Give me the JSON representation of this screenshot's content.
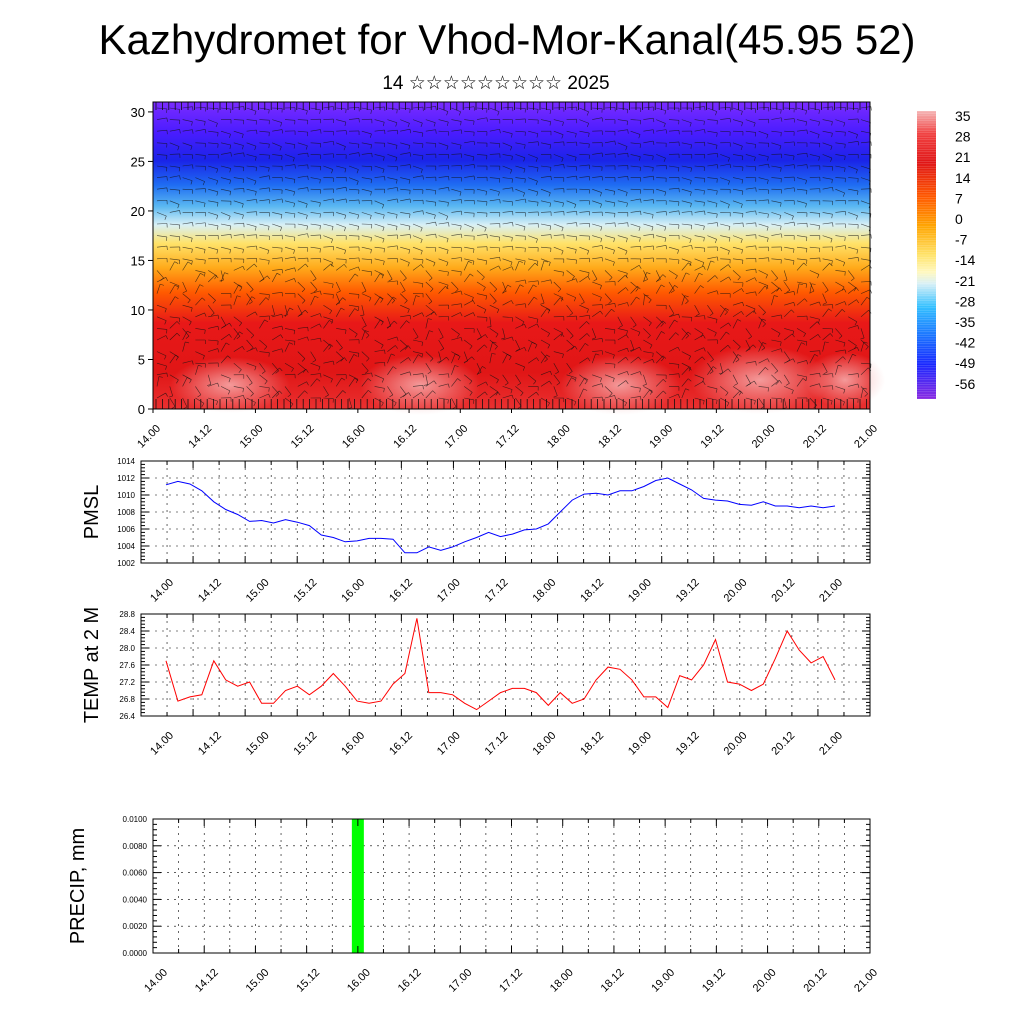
{
  "header": {
    "title": "Kazhydromet for Vhod-Mor-Kanal(45.95 52)",
    "subtitle": "14 ☆☆☆☆☆☆☆☆☆ 2025"
  },
  "chart_data": [
    {
      "type": "heatmap",
      "title": "",
      "xlabel": "",
      "ylabel": "",
      "x_tick_labels": [
        "14.00",
        "14.12",
        "15.00",
        "15.12",
        "16.00",
        "16.12",
        "17.00",
        "17.12",
        "18.00",
        "18.12",
        "19.00",
        "19.12",
        "20.00",
        "20.12",
        "21.00"
      ],
      "y_ticks": [
        0,
        5,
        10,
        15,
        20,
        25,
        30
      ],
      "ylim": [
        0,
        31
      ],
      "colorbar_labels": [
        "35",
        "28",
        "21",
        "14",
        "7",
        "0",
        "-7",
        "-14",
        "-21",
        "-28",
        "-35",
        "-42",
        "-49",
        "-56"
      ],
      "colorbar_colors": [
        "#f2a6a6",
        "#e81818",
        "#ff5a00",
        "#ffa500",
        "#ffd24a",
        "#fff6a8",
        "#c8eeff",
        "#33c0ff",
        "#1a74ff",
        "#1a28ff",
        "#6a1aff",
        "#8a2be2"
      ],
      "overlay": "wind barbs",
      "colors": {
        "low_levels": "#e81818",
        "mid_levels": "#ffd24a",
        "upper_levels": "#1a28ff",
        "top": "#7b2cff"
      }
    },
    {
      "type": "line",
      "ylabel": "PMSL",
      "ylim": [
        1002,
        1014
      ],
      "y_ticks": [
        1002,
        1004,
        1006,
        1008,
        1010,
        1012,
        1014
      ],
      "x_tick_labels": [
        "14.00",
        "14.12",
        "15.00",
        "15.12",
        "16.00",
        "16.12",
        "17.00",
        "17.12",
        "18.00",
        "18.12",
        "19.00",
        "19.12",
        "20.00",
        "20.12",
        "21.00"
      ],
      "series": [
        {
          "color": "#0000ff",
          "values": [
            1011.2,
            1011.6,
            1011.3,
            1010.5,
            1009.2,
            1008.3,
            1007.7,
            1006.9,
            1007.0,
            1006.7,
            1007.1,
            1006.8,
            1006.4,
            1005.3,
            1005.0,
            1004.5,
            1004.6,
            1004.9,
            1004.9,
            1004.8,
            1003.2,
            1003.2,
            1003.9,
            1003.5,
            1003.9,
            1004.5,
            1005.0,
            1005.6,
            1005.1,
            1005.4,
            1005.9,
            1006.0,
            1006.6,
            1008.0,
            1009.4,
            1010.1,
            1010.2,
            1010.0,
            1010.5,
            1010.5,
            1011.0,
            1011.7,
            1012.0,
            1011.3,
            1010.6,
            1009.6,
            1009.4,
            1009.3,
            1008.9,
            1008.8,
            1009.2,
            1008.7,
            1008.7,
            1008.5,
            1008.7,
            1008.5,
            1008.7
          ]
        }
      ]
    },
    {
      "type": "line",
      "ylabel": "TEMP at 2 M",
      "ylim": [
        26.4,
        28.8
      ],
      "y_ticks": [
        "26.4",
        "26.8",
        "27.2",
        "27.6",
        "28.0",
        "28.4",
        "28.8"
      ],
      "x_tick_labels": [
        "14.00",
        "14.12",
        "15.00",
        "15.12",
        "16.00",
        "16.12",
        "17.00",
        "17.12",
        "18.00",
        "18.12",
        "19.00",
        "19.12",
        "20.00",
        "20.12",
        "21.00"
      ],
      "series": [
        {
          "color": "#ff0000",
          "values": [
            27.7,
            26.75,
            26.85,
            26.9,
            27.7,
            27.25,
            27.1,
            27.2,
            26.7,
            26.7,
            27.0,
            27.1,
            26.9,
            27.1,
            27.4,
            27.1,
            26.75,
            26.7,
            26.75,
            27.15,
            27.4,
            28.7,
            26.95,
            26.95,
            26.9,
            26.7,
            26.55,
            26.75,
            26.95,
            27.05,
            27.05,
            26.95,
            26.65,
            26.95,
            26.7,
            26.8,
            27.25,
            27.55,
            27.5,
            27.25,
            26.85,
            26.85,
            26.6,
            27.35,
            27.25,
            27.6,
            28.2,
            27.2,
            27.15,
            27.0,
            27.15,
            27.75,
            28.4,
            27.95,
            27.65,
            27.8,
            27.25
          ]
        }
      ]
    },
    {
      "type": "bar",
      "ylabel": "PRECIP, mm",
      "ylim": [
        0,
        0.01
      ],
      "y_ticks": [
        "0.0000",
        "0.0020",
        "0.0040",
        "0.0060",
        "0.0080",
        "0.0100"
      ],
      "x_tick_labels": [
        "14.00",
        "14.12",
        "15.00",
        "15.12",
        "16.00",
        "16.12",
        "17.00",
        "17.12",
        "18.00",
        "18.12",
        "19.00",
        "19.12",
        "20.00",
        "20.12",
        "21.00"
      ],
      "bars": [
        {
          "x": "16.00",
          "value": 0.01,
          "color": "#00ff00"
        }
      ]
    }
  ]
}
